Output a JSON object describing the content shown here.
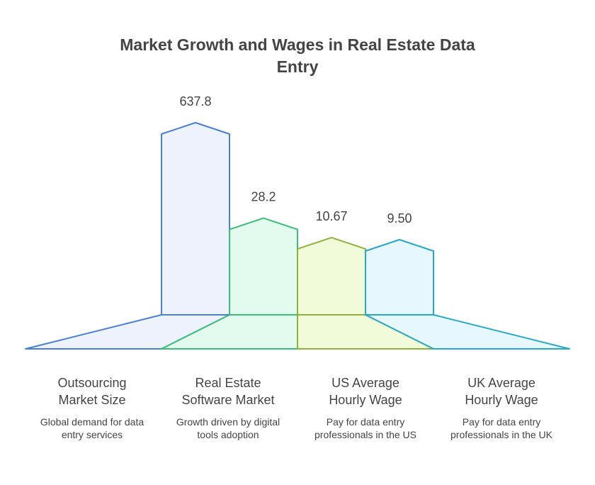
{
  "title_lines": [
    "Market Growth and Wages in Real Estate Data",
    "Entry"
  ],
  "chart_data": {
    "type": "bar",
    "categories": [
      "Outsourcing Market Size",
      "Real Estate Software Market",
      "US Average Hourly Wage",
      "UK Average Hourly Wage"
    ],
    "values": [
      637.8,
      28.2,
      10.67,
      9.5
    ],
    "value_labels": [
      "637.8",
      "28.2",
      "10.67",
      "9.50"
    ],
    "ylim": [
      0,
      637.8
    ],
    "grid": false,
    "legend": "none",
    "colors": {
      "stroke": [
        "#4a7fd4",
        "#3cbf7a",
        "#8db33a",
        "#2aa8c8"
      ],
      "fill": [
        "#eef2fd",
        "#e3fbee",
        "#f2fbd9",
        "#e6f7fd"
      ]
    }
  },
  "categories": [
    {
      "title_lines": [
        "Outsourcing",
        "Market Size"
      ],
      "desc_lines": [
        "Global demand for data",
        "entry services"
      ]
    },
    {
      "title_lines": [
        "Real Estate",
        "Software Market"
      ],
      "desc_lines": [
        "Growth driven by digital",
        "tools adoption"
      ]
    },
    {
      "title_lines": [
        "US Average",
        "Hourly Wage"
      ],
      "desc_lines": [
        "Pay for data entry",
        "professionals in the US"
      ]
    },
    {
      "title_lines": [
        "UK Average",
        "Hourly Wage"
      ],
      "desc_lines": [
        "Pay for data entry",
        "professionals in the UK"
      ]
    }
  ]
}
